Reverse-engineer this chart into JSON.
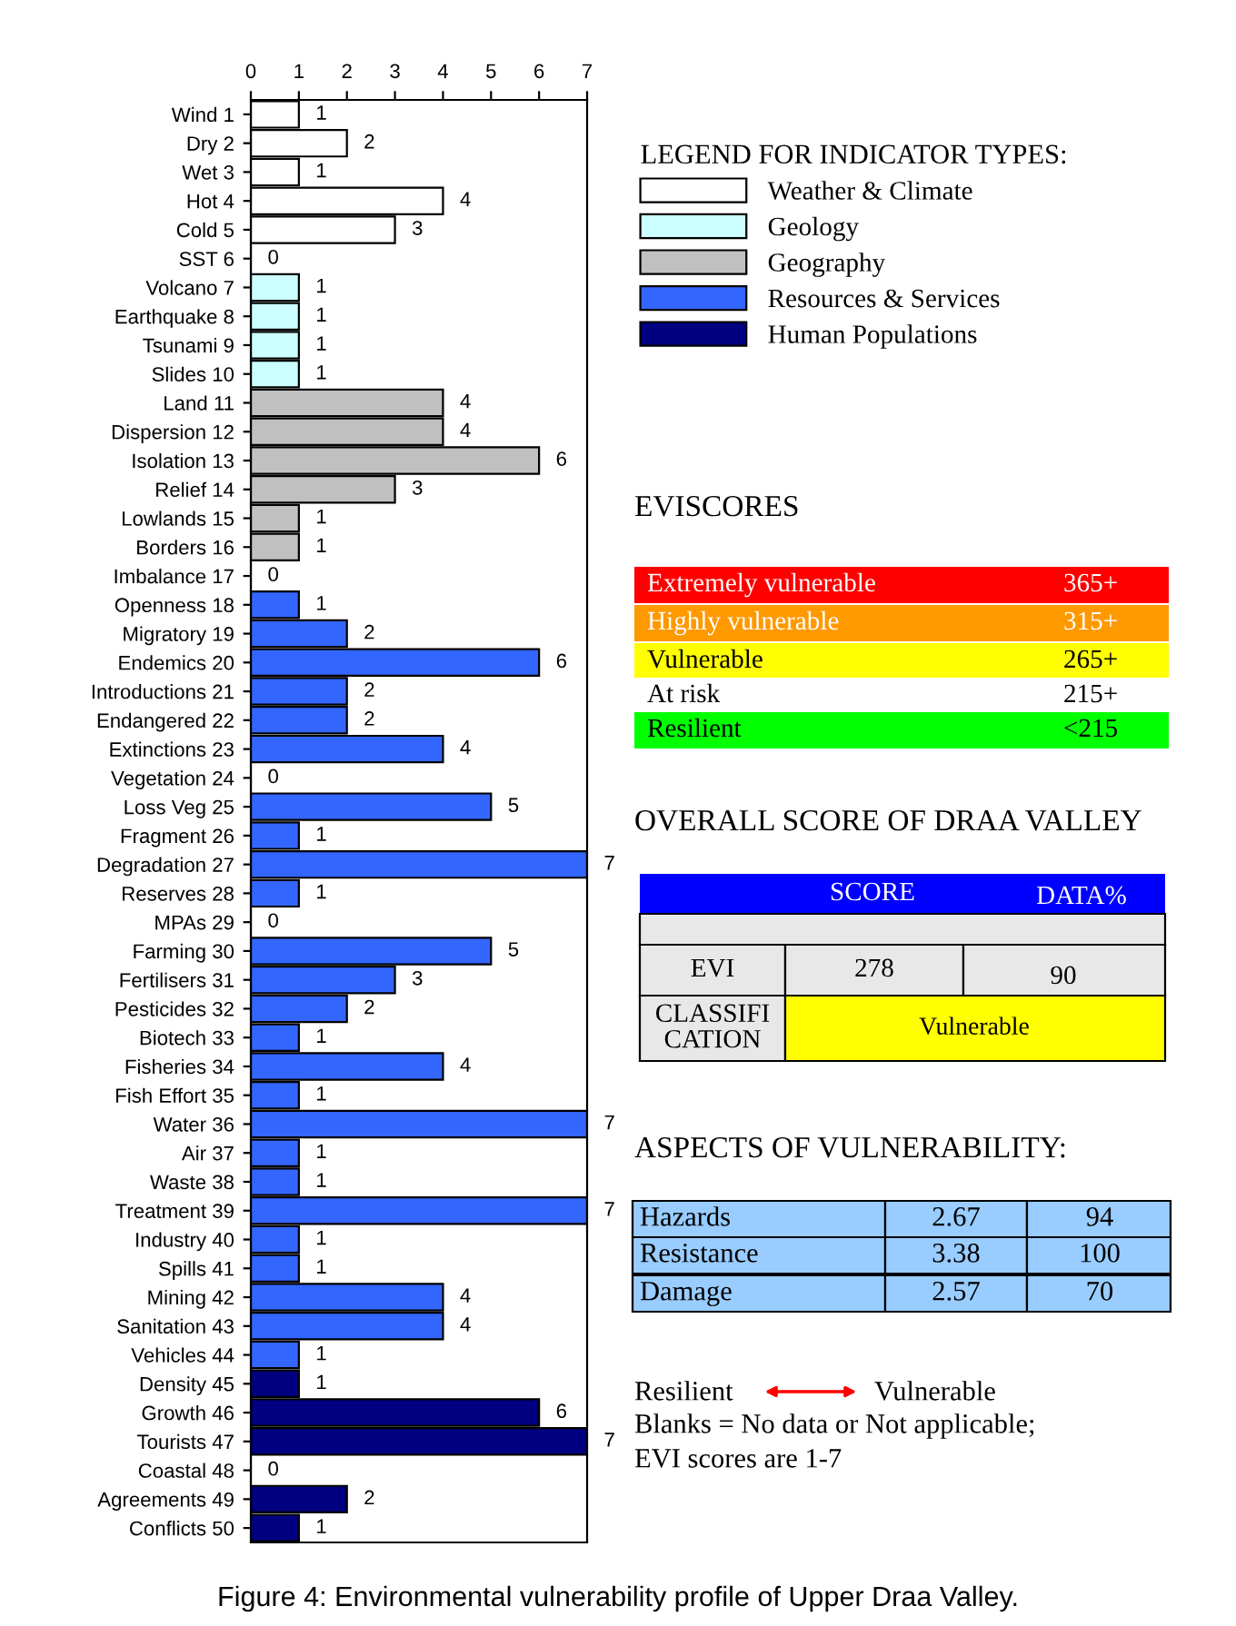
{
  "chart_data": [
    {
      "type": "bar",
      "orientation": "horizontal",
      "categories": [
        "Wind 1",
        "Dry 2",
        "Wet 3",
        "Hot 4",
        "Cold 5",
        "SST 6",
        "Volcano 7",
        "Earthquake 8",
        "Tsunami 9",
        "Slides 10",
        "Land 11",
        "Dispersion 12",
        "Isolation 13",
        "Relief 14",
        "Lowlands 15",
        "Borders 16",
        "Imbalance 17",
        "Openness 18",
        "Migratory 19",
        "Endemics 20",
        "Introductions 21",
        "Endangered 22",
        "Extinctions 23",
        "Vegetation 24",
        "Loss Veg 25",
        "Fragment 26",
        "Degradation 27",
        "Reserves 28",
        "MPAs 29",
        "Farming 30",
        "Fertilisers 31",
        "Pesticides 32",
        "Biotech 33",
        "Fisheries 34",
        "Fish Effort 35",
        "Water 36",
        "Air 37",
        "Waste 38",
        "Treatment 39",
        "Industry 40",
        "Spills 41",
        "Mining 42",
        "Sanitation 43",
        "Vehicles 44",
        "Density 45",
        "Growth 46",
        "Tourists 47",
        "Coastal 48",
        "Agreements 49",
        "Conflicts 50"
      ],
      "series": [
        {
          "name": "Weather & Climate",
          "color": "#ffffff",
          "values": [
            1,
            2,
            1,
            4,
            3,
            0,
            null,
            null,
            null,
            null,
            null,
            null,
            null,
            null,
            null,
            null,
            null,
            null,
            null,
            null,
            null,
            null,
            null,
            null,
            null,
            null,
            null,
            null,
            null,
            null,
            null,
            null,
            null,
            null,
            null,
            null,
            null,
            null,
            null,
            null,
            null,
            null,
            null,
            null,
            null,
            null,
            null,
            null,
            null,
            null
          ]
        },
        {
          "name": "Geology",
          "color": "#ccffff",
          "values": [
            null,
            null,
            null,
            null,
            null,
            null,
            1,
            1,
            1,
            1,
            null,
            null,
            null,
            null,
            null,
            null,
            null,
            null,
            null,
            null,
            null,
            null,
            null,
            null,
            null,
            null,
            null,
            null,
            null,
            null,
            null,
            null,
            null,
            null,
            null,
            null,
            null,
            null,
            null,
            null,
            null,
            null,
            null,
            null,
            null,
            null,
            null,
            null,
            null,
            null
          ]
        },
        {
          "name": "Geography",
          "color": "#c0c0c0",
          "values": [
            null,
            null,
            null,
            null,
            null,
            null,
            null,
            null,
            null,
            null,
            4,
            4,
            6,
            3,
            1,
            1,
            0,
            null,
            null,
            null,
            null,
            null,
            null,
            null,
            null,
            null,
            null,
            null,
            null,
            null,
            null,
            null,
            null,
            null,
            null,
            null,
            null,
            null,
            null,
            null,
            null,
            null,
            null,
            null,
            null,
            null,
            null,
            null,
            null,
            null
          ]
        },
        {
          "name": "Resources & Services",
          "color": "#3366ff",
          "values": [
            null,
            null,
            null,
            null,
            null,
            null,
            null,
            null,
            null,
            null,
            null,
            null,
            null,
            null,
            null,
            null,
            null,
            1,
            2,
            6,
            2,
            2,
            4,
            0,
            5,
            1,
            7,
            1,
            0,
            5,
            3,
            2,
            1,
            4,
            1,
            7,
            1,
            1,
            7,
            1,
            1,
            4,
            4,
            1,
            null,
            null,
            null,
            null,
            null,
            null
          ]
        },
        {
          "name": "Human Populations",
          "color": "#000080",
          "values": [
            null,
            null,
            null,
            null,
            null,
            null,
            null,
            null,
            null,
            null,
            null,
            null,
            null,
            null,
            null,
            null,
            null,
            null,
            null,
            null,
            null,
            null,
            null,
            null,
            null,
            null,
            null,
            null,
            null,
            null,
            null,
            null,
            null,
            null,
            null,
            null,
            null,
            null,
            null,
            null,
            null,
            null,
            null,
            null,
            1,
            6,
            7,
            0,
            2,
            1
          ]
        }
      ],
      "xlim": [
        0,
        7
      ],
      "xticks": [
        0,
        1,
        2,
        3,
        4,
        5,
        6,
        7
      ],
      "data_labels": true,
      "grid": false,
      "legend": "right",
      "legend_title": "LEGEND FOR INDICATOR TYPES:",
      "annotations": [
        "Figure 4: Environmental vulnerability profile of Upper Draa Valley."
      ]
    },
    {
      "type": "other",
      "annotations": [
        "EVISCORES",
        "Extremely vulnerable",
        "365+",
        "Highly vulnerable",
        "315+",
        "Vulnerable",
        "265+",
        "At risk",
        "215+",
        "Resilient",
        "<215",
        "OVERALL SCORE OF DRAA VALLEY",
        "SCORE",
        "DATA%",
        "EVI",
        "278",
        "90",
        "CLASSIFI\nCATION",
        "Vulnerable",
        "ASPECTS OF VULNERABILITY:",
        "Hazards",
        "2.67",
        "94",
        "Resistance",
        "3.38",
        "100",
        "Damage",
        "2.57",
        "70",
        "Resilient",
        "Vulnerable",
        "Blanks = No data or Not applicable;",
        "EVI scores are 1-7"
      ]
    }
  ]
}
